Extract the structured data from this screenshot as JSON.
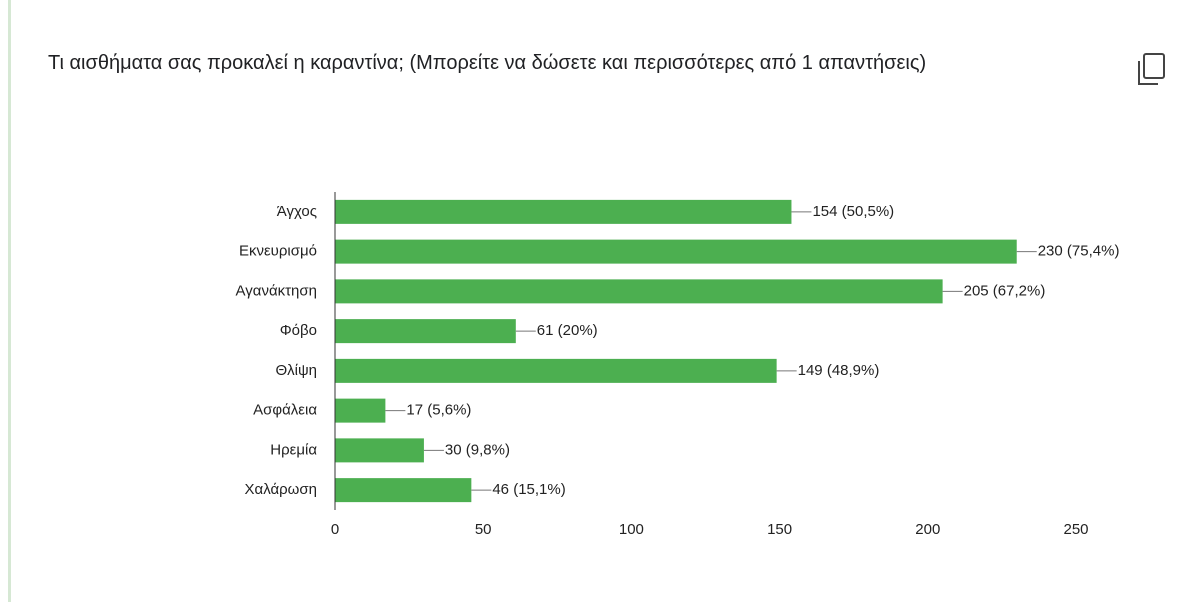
{
  "chart_data": {
    "type": "bar",
    "orientation": "horizontal",
    "title": "Τι αισθήματα σας προκαλεί η καραντίνα; (Μπορείτε να δώσετε και περισσότερες από 1 απαντήσεις)",
    "categories": [
      "Άγχος",
      "Εκνευρισμό",
      "Αγανάκτηση",
      "Φόβο",
      "Θλίψη",
      "Ασφάλεια",
      "Ηρεμία",
      "Χαλάρωση"
    ],
    "values": [
      154,
      230,
      205,
      61,
      149,
      17,
      30,
      46
    ],
    "value_labels": [
      "154 (50,5%)",
      "230 (75,4%)",
      "205 (67,2%)",
      "61 (20%)",
      "149 (48,9%)",
      "17 (5,6%)",
      "30 (9,8%)",
      "46 (15,1%)"
    ],
    "color": "#4caf50",
    "xlim": [
      0,
      250
    ],
    "xticks": [
      0,
      50,
      100,
      150,
      200,
      250
    ],
    "grid": false
  }
}
